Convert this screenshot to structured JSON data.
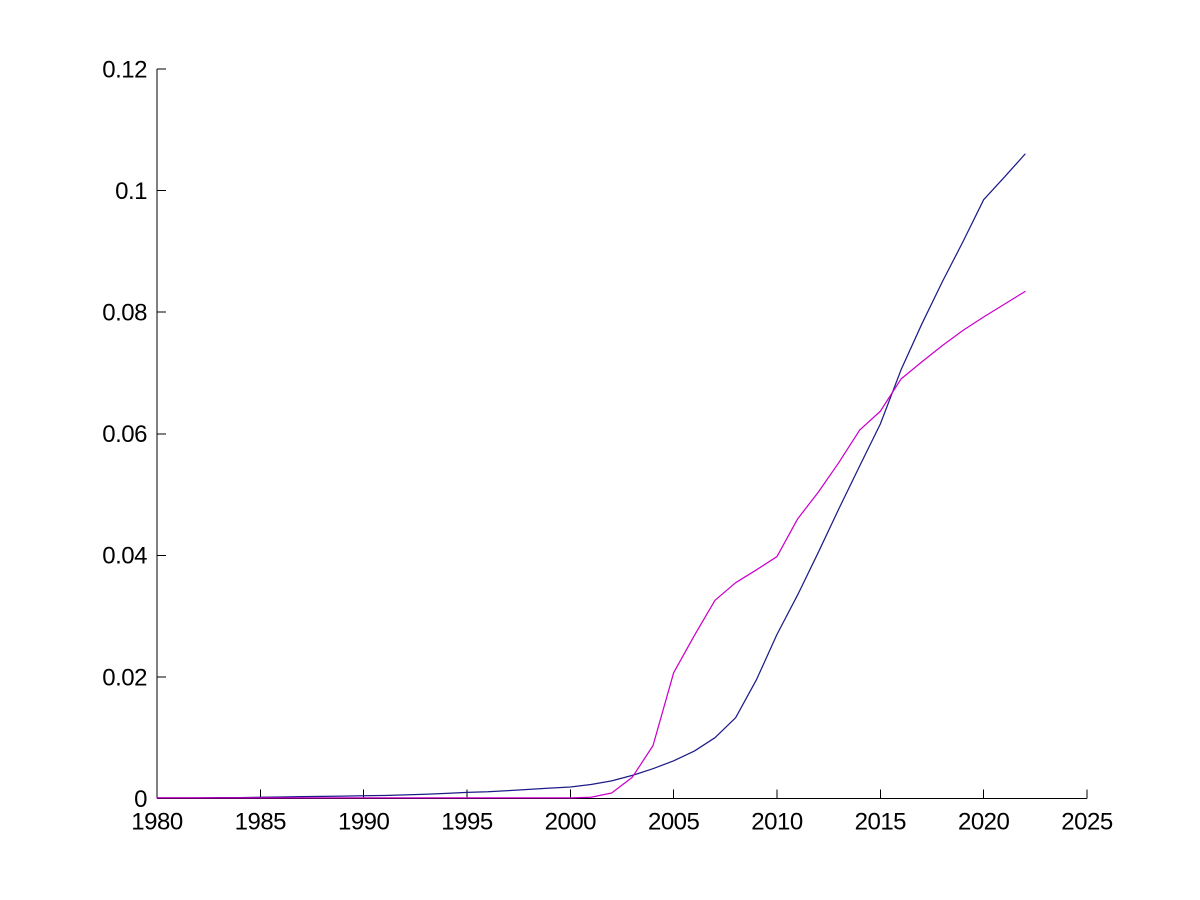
{
  "figure": {
    "background": "#ffffff",
    "axis_color": "#000000"
  },
  "chart_data": {
    "type": "line",
    "title": "",
    "xlabel": "",
    "ylabel": "",
    "grid": false,
    "legend": null,
    "xlim": [
      1980,
      2025
    ],
    "ylim": [
      0,
      0.12
    ],
    "x_ticks": [
      1980,
      1985,
      1990,
      1995,
      2000,
      2005,
      2010,
      2015,
      2020,
      2025
    ],
    "x_tick_labels": [
      "1980",
      "1985",
      "1990",
      "1995",
      "2000",
      "2005",
      "2010",
      "2015",
      "2020",
      "2025"
    ],
    "y_ticks": [
      0,
      0.02,
      0.04,
      0.06,
      0.08,
      0.1,
      0.12
    ],
    "y_tick_labels": [
      "0",
      "0.02",
      "0.04",
      "0.06",
      "0.08",
      "0.1",
      "0.12"
    ],
    "x": [
      1980,
      1981,
      1982,
      1983,
      1984,
      1985,
      1986,
      1987,
      1988,
      1989,
      1990,
      1991,
      1992,
      1993,
      1994,
      1995,
      1996,
      1997,
      1998,
      1999,
      2000,
      2001,
      2002,
      2003,
      2004,
      2005,
      2006,
      2007,
      2008,
      2009,
      2010,
      2011,
      2012,
      2013,
      2014,
      2015,
      2016,
      2017,
      2018,
      2019,
      2020,
      2021,
      2022
    ],
    "series": [
      {
        "name": "dark-blue-line",
        "color": "#1d1c87",
        "values": [
          0.0001,
          0.0001,
          0.0001,
          0.00015,
          0.00015,
          0.0002,
          0.00025,
          0.0003,
          0.00035,
          0.0004,
          0.00045,
          0.0005,
          0.0006,
          0.0007,
          0.00085,
          0.001,
          0.0011,
          0.0013,
          0.0015,
          0.0017,
          0.0019,
          0.0023,
          0.0029,
          0.0038,
          0.0049,
          0.0062,
          0.0078,
          0.01,
          0.0133,
          0.0195,
          0.027,
          0.0335,
          0.0405,
          0.0477,
          0.0547,
          0.0616,
          0.0705,
          0.078,
          0.085,
          0.0916,
          0.0985,
          0.1022,
          0.106
        ]
      },
      {
        "name": "magenta-line",
        "color": "#cc00cc",
        "values": [
          0.0001,
          0.0001,
          0.0001,
          0.0001,
          0.0001,
          0.0001,
          0.0001,
          0.0001,
          0.0001,
          0.0001,
          0.0001,
          0.0001,
          0.0001,
          0.0001,
          0.0001,
          0.0001,
          0.0001,
          0.0001,
          0.0001,
          0.0001,
          0.0001,
          0.0002,
          0.0009,
          0.0035,
          0.0087,
          0.0207,
          0.0268,
          0.0326,
          0.0355,
          0.0376,
          0.0398,
          0.046,
          0.0504,
          0.0553,
          0.0606,
          0.0637,
          0.069,
          0.0718,
          0.0745,
          0.077,
          0.0792,
          0.0813,
          0.0834
        ]
      }
    ]
  }
}
